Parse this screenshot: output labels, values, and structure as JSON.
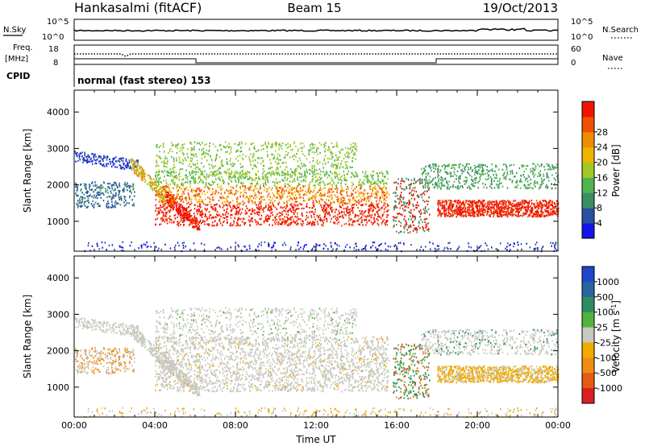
{
  "header": {
    "station": "Hankasalmi (fitACF)",
    "beam": "Beam 15",
    "date": "19/Oct/2013"
  },
  "status_panels": {
    "nsky_label": "N.Sky",
    "nsky_ticks": [
      "10^5",
      "10^0"
    ],
    "nsearch_label": "N.Search",
    "nsearch_ticks": [
      "10^5",
      "10^0"
    ],
    "freq_label_top": "Freq.",
    "freq_label_bottom": "[MHz]",
    "freq_ticks": [
      "18",
      "8"
    ],
    "nave_label": "Nave",
    "nave_ticks": [
      "60",
      "0"
    ],
    "cpid_label": "CPID",
    "cpid_text": "normal (fast stereo) 153"
  },
  "chart_data": [
    {
      "type": "heatmap",
      "name": "power",
      "ylabel": "Slant Range [km]",
      "xlabel": "",
      "x_range_hours": [
        0,
        24
      ],
      "ylim": [
        180,
        4600
      ],
      "yticks": [
        "1000",
        "2000",
        "3000",
        "4000"
      ],
      "colorbar": {
        "label": "Power [dB]",
        "ticks": [
          "4",
          "8",
          "12",
          "16",
          "20",
          "24",
          "28"
        ],
        "colors": [
          "#1414e6",
          "#2850a0",
          "#3c8c64",
          "#50b450",
          "#a0c828",
          "#f0b400",
          "#f08c00",
          "#f05000",
          "#f01400"
        ]
      }
    },
    {
      "type": "heatmap",
      "name": "velocity",
      "ylabel": "Slant Range [km]",
      "xlabel": "Time UT",
      "x_range_hours": [
        0,
        24
      ],
      "ylim": [
        180,
        4600
      ],
      "yticks": [
        "1000",
        "2000",
        "3000",
        "4000"
      ],
      "xticks": [
        "00:00",
        "04:00",
        "08:00",
        "12:00",
        "16:00",
        "20:00",
        "00:00"
      ],
      "colorbar": {
        "label": "Velocity [m s",
        "label_sup": "-1",
        "label_end": "]",
        "ticks": [
          "1000",
          "500",
          "100",
          "25",
          "-25",
          "-100",
          "-500",
          "-1000"
        ],
        "colors": [
          "#1e46c8",
          "#2864a0",
          "#2d8c64",
          "#50b43c",
          "#c8c8c0",
          "#f0aa00",
          "#f08c14",
          "#e65a14",
          "#dc1e1e"
        ]
      }
    }
  ]
}
